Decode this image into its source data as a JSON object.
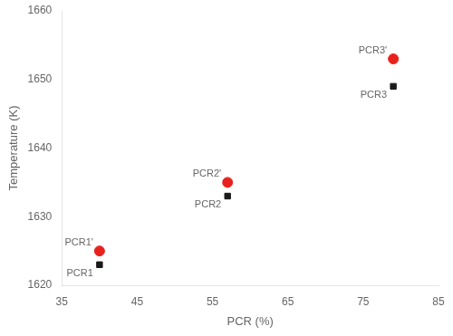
{
  "chart_data": {
    "type": "scatter",
    "xlabel": "PCR (%)",
    "ylabel": "Temperature (K)",
    "series": [
      {
        "color": "#e8211d",
        "marker": "circle",
        "x": [
          40,
          57,
          79
        ],
        "values": [
          1625,
          1635,
          1653
        ],
        "labels": [
          "PCR1'",
          "PCR2'",
          "PCR3'"
        ]
      },
      {
        "color": "#1a1a1a",
        "marker": "square",
        "x": [
          40,
          57,
          79
        ],
        "values": [
          1623,
          1633,
          1649
        ],
        "labels": [
          "PCR1",
          "PCR2",
          "PCR3"
        ]
      }
    ],
    "xlim": [
      35,
      85
    ],
    "xticks": [
      35,
      45,
      55,
      65,
      75,
      85
    ],
    "ylim": [
      1620,
      1660
    ],
    "yticks": [
      1620,
      1630,
      1640,
      1650,
      1660
    ],
    "grid": false
  }
}
